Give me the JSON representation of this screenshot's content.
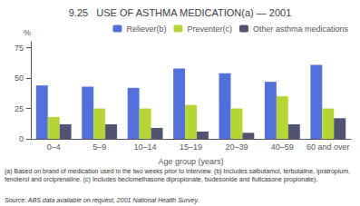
{
  "chart_data": {
    "type": "bar",
    "title": "9.25   USE OF ASTHMA MEDICATION(a) — 2001",
    "categories": [
      "0–4",
      "5–9",
      "10–14",
      "15–19",
      "20–39",
      "40–59",
      "60 and over"
    ],
    "series": [
      {
        "name": "Reliever(b)",
        "values": [
          44,
          43,
          42,
          58,
          54,
          47,
          61
        ]
      },
      {
        "name": "Preventer(c)",
        "values": [
          18,
          25,
          25,
          28,
          25,
          35,
          25
        ]
      },
      {
        "name": "Other asthma medications",
        "values": [
          12,
          12,
          9,
          6,
          5,
          12,
          17
        ]
      }
    ],
    "x_label": "Age group (years)",
    "y_label": "%",
    "ylim": [
      0,
      80
    ],
    "yticks": [
      0,
      25,
      50,
      75
    ],
    "grid": false,
    "legend": "upper right",
    "annotations": [
      "(a) Based on brand of medication used in the two weeks prior to interview. (b) Includes salbutamol, terbutaline, ipratropium, fenoterol and orciprenaline. (c) Includes beclomethasone dipropionate, budesonide and fluticasone propionate).",
      "Source: ABS data available on request, 2001 National Health Survey."
    ]
  }
}
